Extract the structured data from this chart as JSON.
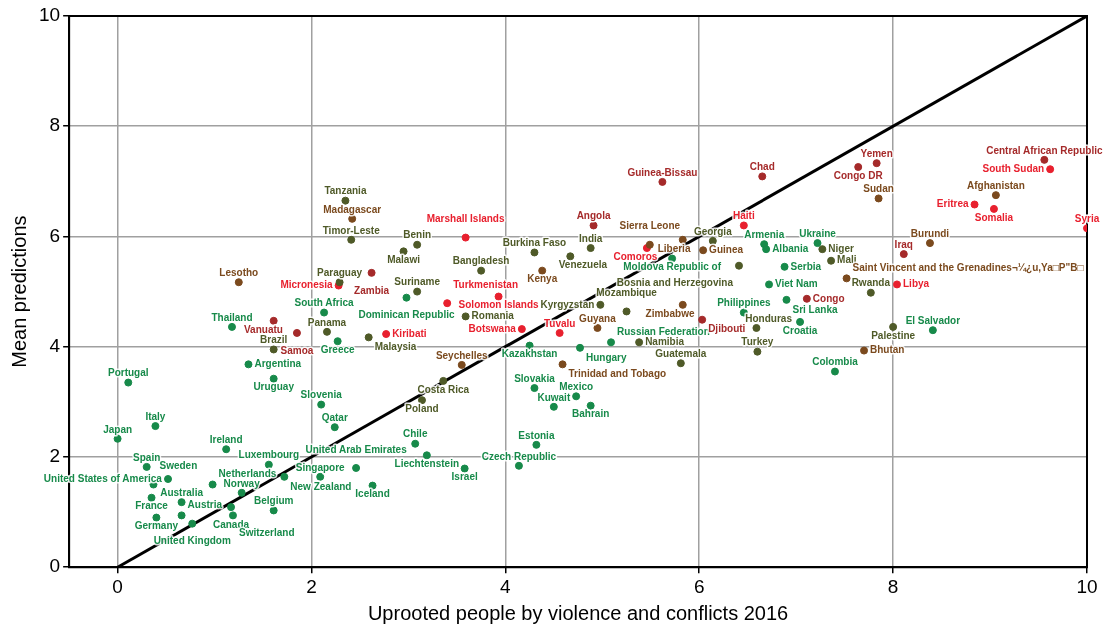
{
  "chart_data": {
    "type": "scatter",
    "xlabel": "Uprooted people by violence and conflicts 2016",
    "ylabel": "Mean predictions",
    "xlim": [
      -0.5,
      10
    ],
    "ylim": [
      0,
      10
    ],
    "xticks": [
      0,
      2,
      4,
      6,
      8,
      10
    ],
    "yticks": [
      0,
      2,
      4,
      6,
      8,
      10
    ],
    "grid": true,
    "legend": false,
    "marker": "circle",
    "series": [
      {
        "color": "#178a4a",
        "x": [
          0.11,
          0.0,
          0.39,
          0.3,
          0.52,
          0.37,
          1.12,
          0.35,
          0.66,
          0.4,
          0.66,
          0.77,
          1.17,
          1.19,
          1.61,
          1.28,
          0.98,
          1.56,
          1.72,
          2.09,
          2.46,
          2.63,
          2.1,
          2.24,
          3.07,
          3.19,
          3.58,
          4.14,
          4.32,
          4.3,
          4.73,
          4.5,
          4.88,
          4.25,
          1.18,
          1.35,
          1.61,
          2.13,
          2.27,
          6.46,
          6.9,
          7.04,
          7.4,
          8.41,
          6.67,
          6.69,
          7.22,
          6.88,
          6.72,
          5.72,
          5.09,
          4.77,
          2.98
        ],
        "values": [
          3.35,
          2.33,
          2.56,
          1.82,
          1.6,
          1.5,
          2.14,
          1.26,
          1.18,
          0.9,
          0.94,
          0.79,
          1.09,
          0.94,
          1.03,
          1.35,
          1.5,
          1.86,
          1.64,
          1.64,
          1.8,
          1.48,
          2.95,
          2.54,
          2.24,
          2.03,
          1.79,
          1.84,
          2.22,
          3.25,
          3.1,
          2.91,
          2.93,
          4.02,
          4.36,
          3.68,
          3.42,
          4.62,
          4.1,
          4.62,
          4.85,
          4.45,
          3.55,
          4.3,
          5.86,
          5.77,
          5.88,
          5.45,
          5.13,
          5.6,
          4.08,
          3.98,
          4.89
        ],
        "value_labels": [
          "Portugal",
          "Japan",
          "Italy",
          "Spain",
          "United States of America",
          "Sweden",
          "Ireland",
          "France",
          "Australia",
          "Germany",
          "Austria",
          "United Kingdom",
          "Canada",
          "Switzerland",
          "Belgium",
          "Norway",
          "Netherlands",
          "Luxembourg",
          "New Zealand",
          "Singapore",
          "United Arab Emirates",
          "Iceland",
          "Slovenia",
          "Qatar",
          "Chile",
          "Liechtenstein",
          "Israel",
          "Czech Republic",
          "Estonia",
          "Slovakia",
          "Mexico",
          "Kuwait",
          "Bahrain",
          "Kazakhstan",
          "Thailand",
          "Argentina",
          "Uruguay",
          "South Africa",
          "Greece",
          "Philippines",
          "Sri Lanka",
          "Croatia",
          "Colombia",
          "El Salvador",
          "Armenia",
          "Albania",
          "Ukraine",
          "Serbia",
          "Viet Nam",
          "Moldova Republic of",
          "Russian Federation",
          "Hungary",
          "Dominican Republic"
        ]
      },
      {
        "color": "#4f5a28",
        "x": [
          2.35,
          2.41,
          2.95,
          3.09,
          2.29,
          3.09,
          3.75,
          4.3,
          4.67,
          4.88,
          1.61,
          2.16,
          3.36,
          3.14,
          5.81,
          6.6,
          6.59,
          8.0,
          7.77,
          7.27,
          7.36,
          3.59,
          5.25,
          6.14,
          6.41,
          4.98,
          5.38,
          2.59
        ],
        "values": [
          6.65,
          5.94,
          5.73,
          5.85,
          5.17,
          5.0,
          5.38,
          5.71,
          5.64,
          5.79,
          3.95,
          4.27,
          3.38,
          3.03,
          3.7,
          3.91,
          4.34,
          4.36,
          4.98,
          5.77,
          5.56,
          4.55,
          4.64,
          5.92,
          5.47,
          4.76,
          4.08,
          4.17
        ],
        "value_labels": [
          "Tanzania",
          "Timor-Leste",
          "Malawi",
          "Benin",
          "Paraguay",
          "Suriname",
          "Bangladesh",
          "Burkina Faso",
          "Venezuela",
          "India",
          "Brazil",
          "Panama",
          "Costa Rica",
          "Poland",
          "Guatemala",
          "Turkey",
          "Honduras",
          "Palestine",
          "Rwanda",
          "Niger",
          "Mali",
          "Romania",
          "Mozambique",
          "Georgia",
          "Bosnia and Herzegovina",
          "Kyrgyzstan",
          "Namibia",
          "Malaysia"
        ]
      },
      {
        "color": "#7b4a1e",
        "x": [
          5.49,
          3.55,
          4.59,
          2.42,
          1.25,
          7.85,
          9.06,
          8.38,
          7.52,
          5.83,
          6.04,
          5.83,
          4.95,
          7.7,
          4.38
        ],
        "values": [
          5.85,
          3.67,
          3.68,
          6.32,
          5.17,
          6.69,
          6.75,
          5.88,
          5.24,
          5.94,
          5.75,
          4.76,
          4.34,
          3.93,
          5.38
        ],
        "value_labels": [
          "Sierra Leone",
          "Seychelles",
          "Trinidad and Tobago",
          "Madagascar",
          "Lesotho",
          "Sudan",
          "Afghanistan",
          "Burundi",
          "Saint Vincent and the Grenadines¬¼¿u,Ya□P\"B□",
          "Liberia",
          "Guinea",
          "Zimbabwe",
          "Guyana",
          "Bhutan",
          "Kenya"
        ]
      },
      {
        "color": "#a52a2a",
        "x": [
          2.62,
          8.11,
          6.03,
          7.11,
          6.65,
          7.64,
          7.83,
          5.62,
          9.56,
          4.91,
          1.61,
          1.85
        ],
        "values": [
          5.34,
          5.68,
          4.49,
          4.87,
          7.09,
          7.26,
          7.33,
          6.99,
          7.39,
          6.2,
          4.47,
          4.25
        ],
        "value_labels": [
          "Zambia",
          "Iraq",
          "Djibouti",
          "Congo",
          "Chad",
          "Congo DR",
          "Yemen",
          "Guinea-Bissau",
          "Central African Republic",
          "Angola",
          "Vanuatu",
          "Samoa"
        ]
      },
      {
        "color": "#e8202e",
        "x": [
          6.46,
          5.46,
          2.28,
          2.77,
          3.59,
          4.17,
          4.56,
          3.4,
          3.93,
          9.62,
          8.84,
          9.04,
          10.0,
          8.04
        ],
        "values": [
          6.2,
          5.79,
          5.11,
          4.23,
          5.98,
          4.32,
          4.25,
          4.79,
          4.91,
          7.22,
          6.58,
          6.5,
          6.15,
          5.13
        ],
        "value_labels": [
          "Haiti",
          "Comoros",
          "Micronesia",
          "Kiribati",
          "Marshall Islands",
          "Botswana",
          "Tuvalu",
          "Turkmenistan",
          "Solomon Islands",
          "South Sudan",
          "Eritrea",
          "Somalia",
          "Syria",
          "Libya"
        ]
      },
      {
        "type": "line",
        "color": "#000000",
        "marker": "none",
        "x": [
          0,
          10
        ],
        "values": [
          0,
          10
        ]
      }
    ]
  }
}
